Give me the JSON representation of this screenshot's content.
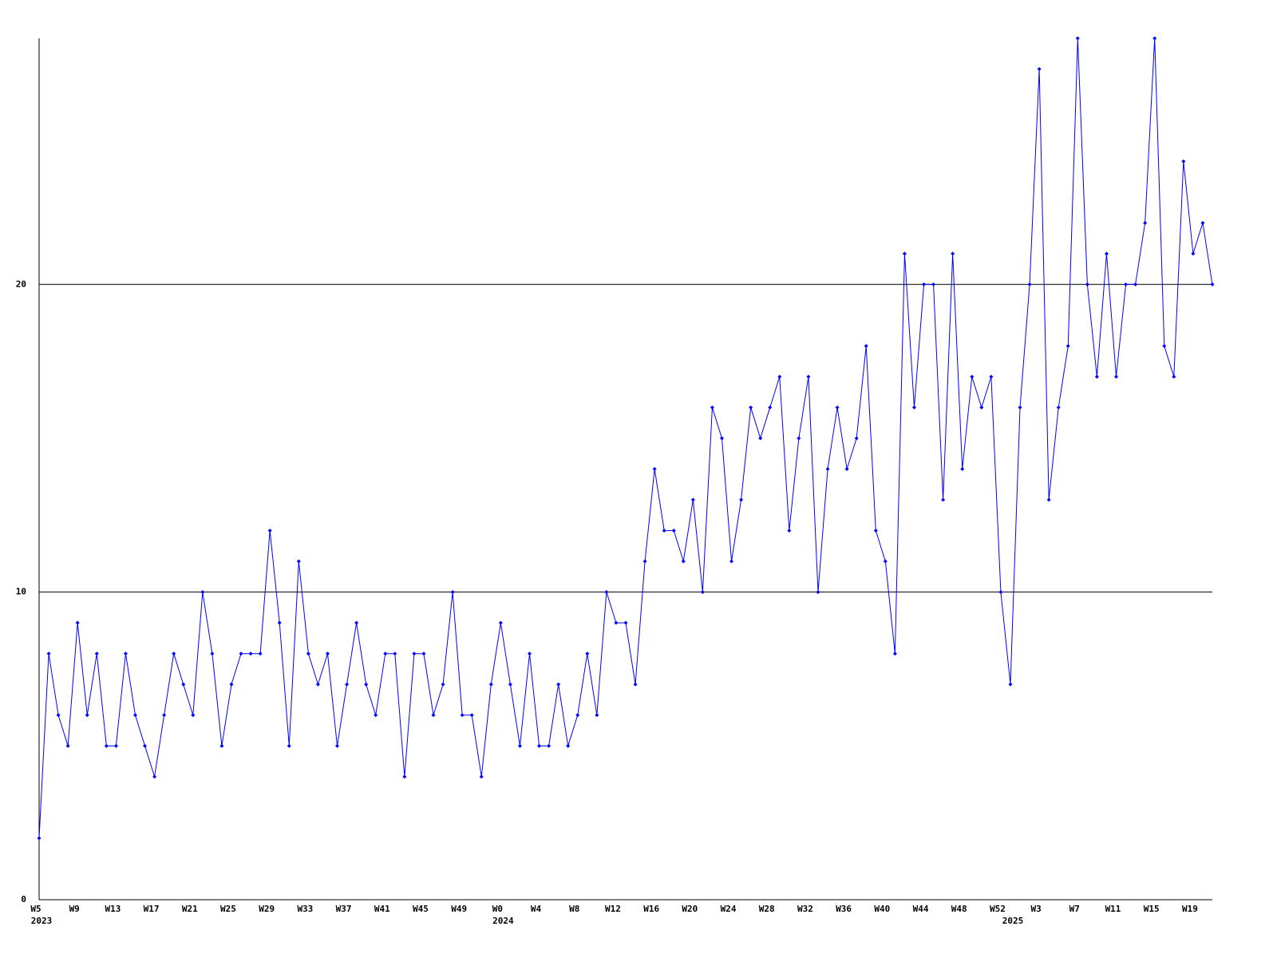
{
  "chart_data": {
    "type": "line",
    "categories": [
      "W5",
      null,
      null,
      null,
      "W9",
      null,
      null,
      null,
      "W13",
      null,
      null,
      null,
      "W17",
      null,
      null,
      null,
      "W21",
      null,
      null,
      null,
      "W25",
      null,
      null,
      null,
      "W29",
      null,
      null,
      null,
      "W33",
      null,
      null,
      null,
      "W37",
      null,
      null,
      null,
      "W41",
      null,
      null,
      null,
      "W45",
      null,
      null,
      null,
      "W49",
      null,
      null,
      null,
      "W0",
      null,
      null,
      null,
      "W4",
      null,
      null,
      null,
      "W8",
      null,
      null,
      null,
      "W12",
      null,
      null,
      null,
      "W16",
      null,
      null,
      null,
      "W20",
      null,
      null,
      null,
      "W24",
      null,
      null,
      null,
      "W28",
      null,
      null,
      null,
      "W32",
      null,
      null,
      null,
      "W36",
      null,
      null,
      null,
      "W40",
      null,
      null,
      null,
      "W44",
      null,
      null,
      null,
      "W48",
      null,
      null,
      null,
      "W52",
      null,
      null,
      null,
      "W3",
      null,
      null,
      null,
      "W7",
      null,
      null,
      null,
      "W11",
      null,
      null,
      null,
      "W15",
      null,
      null,
      null,
      "W19",
      null,
      null
    ],
    "x_groups": [
      {
        "label": "2023",
        "start": 0
      },
      {
        "label": "2024",
        "start": 48
      },
      {
        "label": "2025",
        "start": 101
      }
    ],
    "series": [
      {
        "color": "#0000ff",
        "values": [
          2,
          8,
          6,
          5,
          9,
          6,
          8,
          5,
          5,
          8,
          6,
          5,
          4,
          6,
          8,
          7,
          6,
          10,
          8,
          5,
          7,
          8,
          8,
          8,
          12,
          9,
          5,
          11,
          8,
          7,
          8,
          5,
          7,
          9,
          7,
          6,
          8,
          8,
          4,
          8,
          8,
          6,
          7,
          10,
          6,
          6,
          4,
          7,
          9,
          7,
          5,
          8,
          5,
          5,
          7,
          5,
          6,
          8,
          6,
          10,
          9,
          9,
          7,
          11,
          14,
          12,
          12,
          11,
          13,
          10,
          16,
          15,
          11,
          13,
          16,
          15,
          16,
          17,
          12,
          15,
          17,
          10,
          14,
          16,
          14,
          15,
          18,
          12,
          11,
          8,
          21,
          16,
          20,
          20,
          13,
          21,
          14,
          17,
          16,
          17,
          10,
          7,
          16,
          20,
          27,
          13,
          16,
          18,
          28,
          20,
          17,
          21,
          17,
          20,
          20,
          22,
          28,
          18,
          17,
          24,
          21,
          22,
          20
        ]
      }
    ],
    "ylim": [
      0,
      28
    ],
    "yticks": [
      0,
      10,
      20
    ],
    "grid": true
  }
}
